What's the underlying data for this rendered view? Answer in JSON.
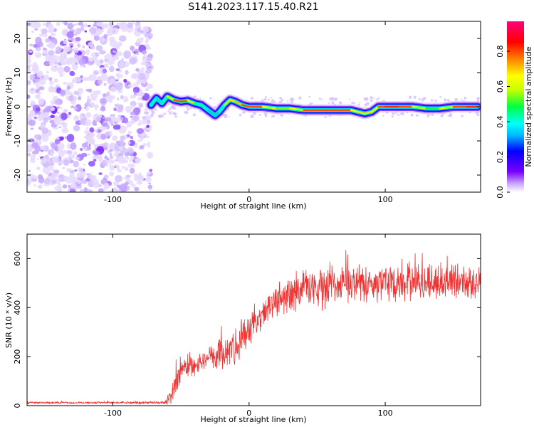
{
  "title": "S141.2023.117.15.40.R21",
  "chart_data": [
    {
      "type": "heatmap",
      "xlabel": "Height of straight line (km)",
      "ylabel": "Frequency (Hz)",
      "xlim": [
        -163,
        170
      ],
      "ylim": [
        -25,
        25
      ],
      "xticks": [
        -100,
        0,
        100
      ],
      "yticks": [
        -20,
        -10,
        0,
        10,
        20
      ],
      "colorbar": {
        "label": "Normalized spectral amplitude",
        "ticks": [
          0.0,
          0.2,
          0.4,
          0.6,
          0.8
        ],
        "range": [
          0,
          0.97
        ],
        "colormap": [
          "#ffffff",
          "#b98cff",
          "#7a00ff",
          "#0000ff",
          "#00b4ff",
          "#00ffff",
          "#00ff40",
          "#c8ff00",
          "#ffff00",
          "#ff8000",
          "#ff0000",
          "#ff007f"
        ]
      },
      "ridge": {
        "x": [
          -72,
          -68,
          -64,
          -60,
          -55,
          -50,
          -45,
          -40,
          -35,
          -30,
          -25,
          -22,
          -18,
          -14,
          -10,
          -5,
          0,
          10,
          20,
          30,
          40,
          50,
          60,
          70,
          75,
          80,
          85,
          90,
          95,
          100,
          110,
          120,
          130,
          140,
          150,
          160,
          168
        ],
        "y": [
          0.5,
          2.5,
          1.0,
          3.0,
          2.0,
          1.5,
          1.8,
          1.0,
          0.5,
          -1.0,
          -2.5,
          -1.5,
          0.5,
          2.0,
          1.5,
          0.5,
          0.0,
          0.0,
          -0.5,
          -0.5,
          -1.0,
          -1.0,
          -1.0,
          -1.0,
          -1.0,
          -1.5,
          -2.0,
          -1.5,
          0.0,
          0.0,
          0.0,
          0.0,
          -0.5,
          -0.5,
          0.0,
          0.0,
          0.0
        ],
        "amplitude": [
          0.4,
          0.45,
          0.35,
          0.5,
          0.8,
          0.85,
          0.8,
          0.5,
          0.45,
          0.4,
          0.35,
          0.4,
          0.5,
          0.75,
          0.7,
          0.8,
          0.85,
          0.8,
          0.6,
          0.55,
          0.8,
          0.85,
          0.8,
          0.85,
          0.8,
          0.6,
          0.85,
          0.6,
          0.8,
          0.85,
          0.85,
          0.8,
          0.5,
          0.55,
          0.8,
          0.85,
          0.85
        ]
      },
      "noise_region_x": [
        -163,
        -72
      ]
    },
    {
      "type": "line",
      "xlabel": "Height of straight line (km)",
      "ylabel": "SNR (10 * v/v)",
      "xlim": [
        -163,
        170
      ],
      "ylim": [
        0,
        700
      ],
      "xticks": [
        -100,
        0,
        100
      ],
      "yticks": [
        0,
        200,
        400,
        600
      ],
      "color": "#ee3333",
      "envelope": {
        "x": [
          -163,
          -100,
          -62,
          -60,
          -55,
          -50,
          -40,
          -30,
          -20,
          -10,
          0,
          10,
          15,
          20,
          30,
          40,
          50,
          60,
          70,
          80,
          90,
          100,
          110,
          120,
          130,
          140,
          150,
          160,
          170
        ],
        "mean": [
          12,
          12,
          12,
          20,
          70,
          150,
          170,
          190,
          210,
          250,
          300,
          360,
          410,
          440,
          460,
          480,
          480,
          490,
          490,
          500,
          490,
          500,
          500,
          500,
          500,
          500,
          510,
          510,
          510
        ],
        "spread": [
          5,
          5,
          6,
          20,
          70,
          60,
          60,
          60,
          80,
          90,
          80,
          70,
          60,
          80,
          100,
          100,
          100,
          100,
          90,
          90,
          80,
          90,
          90,
          90,
          90,
          90,
          90,
          90,
          90
        ]
      }
    }
  ]
}
